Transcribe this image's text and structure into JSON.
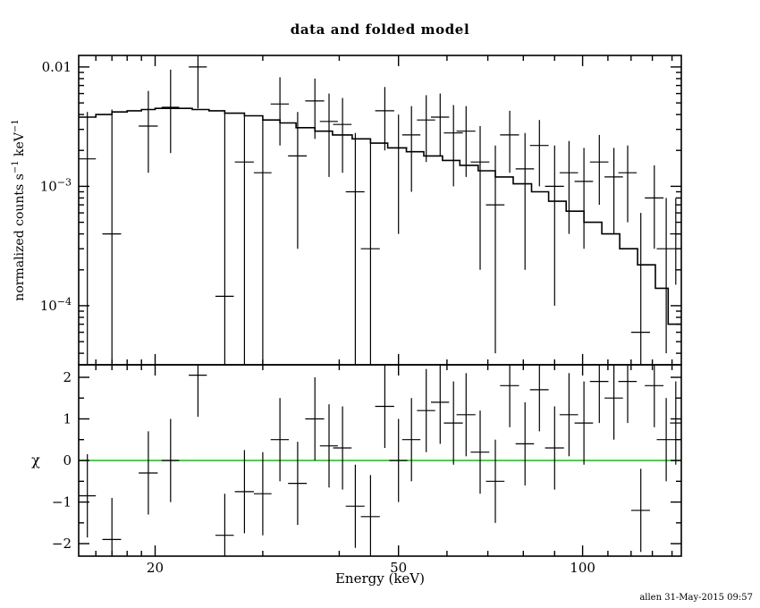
{
  "chart_title": "data and folded model",
  "footer": "allen 31-May-2015 09:57",
  "colors": {
    "foreground": "#000000",
    "background": "#ffffff",
    "zero_line": "#00c800"
  },
  "chart_data": [
    {
      "panel": "spectrum",
      "type": "line",
      "title": "data and folded model",
      "xlabel": "",
      "ylabel": "normalized counts s^-1 keV^-1",
      "xscale": "log",
      "yscale": "log",
      "xlim": [
        15,
        145
      ],
      "ylim": [
        3.2e-05,
        0.0125
      ],
      "xticks_major": [
        20,
        50,
        100
      ],
      "xticks_minor": [
        16,
        17,
        18,
        19,
        30,
        40,
        60,
        70,
        80,
        90,
        110,
        120,
        130,
        140
      ],
      "yticks_major": [
        {
          "value": 0.01,
          "label": "0.01"
        },
        {
          "value": 0.001,
          "label": "10^-3"
        },
        {
          "value": 0.0001,
          "label": "10^-4"
        }
      ],
      "yticks_minor": [
        4e-05,
        5e-05,
        6e-05,
        7e-05,
        8e-05,
        9e-05,
        0.0002,
        0.0003,
        0.0004,
        0.0005,
        0.0006,
        0.0007,
        0.0008,
        0.0009,
        0.002,
        0.003,
        0.004,
        0.005,
        0.006,
        0.007,
        0.008,
        0.009
      ],
      "model_step": {
        "edges": [
          15,
          16,
          17,
          18,
          19,
          20,
          21.5,
          23,
          24.5,
          26,
          28,
          30,
          32,
          34,
          36.5,
          39,
          42,
          45,
          48,
          51.5,
          55,
          59,
          63,
          67.5,
          72,
          77,
          82.5,
          88,
          94,
          100.5,
          107.5,
          115,
          123,
          131.5,
          138,
          145
        ],
        "values": [
          0.0038,
          0.004,
          0.0042,
          0.0043,
          0.0044,
          0.0045,
          0.0045,
          0.0044,
          0.0043,
          0.0041,
          0.0039,
          0.0036,
          0.0034,
          0.0031,
          0.0029,
          0.0027,
          0.0025,
          0.0023,
          0.0021,
          0.00195,
          0.0018,
          0.00165,
          0.0015,
          0.00135,
          0.0012,
          0.00105,
          0.0009,
          0.00075,
          0.00062,
          0.0005,
          0.0004,
          0.0003,
          0.00022,
          0.00014,
          7e-05
        ]
      },
      "points_columns": [
        "x",
        "xlo",
        "xhi",
        "y",
        "ylo",
        "yhi"
      ],
      "points": [
        [
          15.5,
          15.0,
          16.0,
          0.0017,
          3e-05,
          0.0042
        ],
        [
          17.0,
          16.4,
          17.6,
          0.0004,
          3e-05,
          0.0044
        ],
        [
          19.5,
          18.8,
          20.2,
          0.0032,
          0.0013,
          0.0063
        ],
        [
          21.2,
          20.5,
          21.9,
          0.0046,
          0.0019,
          0.0095
        ],
        [
          23.5,
          22.7,
          24.3,
          0.01,
          0.0045,
          0.013
        ],
        [
          26.0,
          25.1,
          26.9,
          0.00012,
          3e-05,
          0.0042
        ],
        [
          28.0,
          27.0,
          29.0,
          0.0016,
          3e-05,
          0.004
        ],
        [
          30.0,
          29.0,
          31.0,
          0.0013,
          3e-05,
          0.0036
        ],
        [
          32.0,
          30.9,
          33.1,
          0.0049,
          0.0022,
          0.0082
        ],
        [
          34.2,
          33.0,
          35.4,
          0.0018,
          0.0003,
          0.0042
        ],
        [
          36.5,
          35.2,
          37.8,
          0.0052,
          0.0025,
          0.008
        ],
        [
          38.5,
          37.2,
          39.8,
          0.0035,
          0.0012,
          0.006
        ],
        [
          40.5,
          39.1,
          41.9,
          0.0033,
          0.0013,
          0.0055
        ],
        [
          42.5,
          41.0,
          44.0,
          0.0009,
          3e-05,
          0.0028
        ],
        [
          45.0,
          43.4,
          46.6,
          0.0003,
          3e-05,
          0.0024
        ],
        [
          47.5,
          45.8,
          49.2,
          0.0043,
          0.002,
          0.0068
        ],
        [
          50.0,
          48.3,
          51.7,
          0.0021,
          0.0004,
          0.004
        ],
        [
          52.5,
          50.7,
          54.3,
          0.0027,
          0.0009,
          0.0047
        ],
        [
          55.5,
          53.6,
          57.4,
          0.0036,
          0.0016,
          0.0058
        ],
        [
          58.5,
          56.5,
          60.5,
          0.0038,
          0.0018,
          0.006
        ],
        [
          61.5,
          59.3,
          63.7,
          0.0028,
          0.001,
          0.0048
        ],
        [
          64.5,
          62.2,
          66.8,
          0.0029,
          0.0012,
          0.0047
        ],
        [
          68.0,
          65.6,
          70.4,
          0.0016,
          0.0002,
          0.0032
        ],
        [
          72.0,
          69.5,
          74.5,
          0.0007,
          4e-05,
          0.0022
        ],
        [
          76.0,
          73.3,
          78.7,
          0.0027,
          0.0013,
          0.0043
        ],
        [
          80.5,
          77.7,
          83.3,
          0.0014,
          0.0002,
          0.0028
        ],
        [
          85.0,
          82.0,
          88.0,
          0.0022,
          0.001,
          0.0036
        ],
        [
          90.0,
          86.8,
          93.2,
          0.001,
          0.0001,
          0.0022
        ],
        [
          95.0,
          91.7,
          98.3,
          0.0013,
          0.0004,
          0.0024
        ],
        [
          100.5,
          97.0,
          104.0,
          0.0011,
          0.0003,
          0.0021
        ],
        [
          106.5,
          102.8,
          110.2,
          0.0016,
          0.0007,
          0.0027
        ],
        [
          112.5,
          108.6,
          116.4,
          0.0012,
          0.0004,
          0.0021
        ],
        [
          118.5,
          114.4,
          122.6,
          0.0013,
          0.0005,
          0.0022
        ],
        [
          124.5,
          120.1,
          128.9,
          6e-05,
          3e-05,
          0.0006
        ],
        [
          131.0,
          126.4,
          135.6,
          0.0008,
          0.0003,
          0.0015
        ],
        [
          137.0,
          132.2,
          141.8,
          0.0003,
          4e-05,
          0.0008
        ],
        [
          142.0,
          139.0,
          145.0,
          0.0004,
          0.00015,
          0.0008
        ]
      ]
    },
    {
      "panel": "residuals",
      "type": "scatter",
      "xlabel": "Energy (keV)",
      "ylabel": "χ",
      "xscale": "log",
      "yscale": "linear",
      "xlim": [
        15,
        145
      ],
      "ylim": [
        -2.3,
        2.3
      ],
      "xticks_major": [
        20,
        50,
        100
      ],
      "xticks_minor": [
        16,
        17,
        18,
        19,
        30,
        40,
        60,
        70,
        80,
        90,
        110,
        120,
        130,
        140
      ],
      "yticks_major": [
        -2,
        -1,
        0,
        1,
        2
      ],
      "yticks_minor": [
        -1.5,
        -0.5,
        0.5,
        1.5
      ],
      "zero_line": {
        "y": 0,
        "color": "#00c800"
      },
      "points_columns": [
        "x",
        "xlo",
        "xhi",
        "chi",
        "err"
      ],
      "points": [
        [
          15.5,
          15.0,
          16.0,
          -0.85,
          1.0
        ],
        [
          17.0,
          16.4,
          17.6,
          -1.9,
          1.0
        ],
        [
          19.5,
          18.8,
          20.2,
          -0.3,
          1.0
        ],
        [
          21.2,
          20.5,
          21.9,
          0.0,
          1.0
        ],
        [
          23.5,
          22.7,
          24.3,
          2.05,
          1.0
        ],
        [
          26.0,
          25.1,
          26.9,
          -1.8,
          1.0
        ],
        [
          28.0,
          27.0,
          29.0,
          -0.75,
          1.0
        ],
        [
          30.0,
          29.0,
          31.0,
          -0.8,
          1.0
        ],
        [
          32.0,
          30.9,
          33.1,
          0.5,
          1.0
        ],
        [
          34.2,
          33.0,
          35.4,
          -0.55,
          1.0
        ],
        [
          36.5,
          35.2,
          37.8,
          1.0,
          1.0
        ],
        [
          38.5,
          37.2,
          39.8,
          0.35,
          1.0
        ],
        [
          40.5,
          39.1,
          41.9,
          0.3,
          1.0
        ],
        [
          42.5,
          41.0,
          44.0,
          -1.1,
          1.0
        ],
        [
          45.0,
          43.4,
          46.6,
          -1.35,
          1.0
        ],
        [
          47.5,
          45.8,
          49.2,
          1.3,
          1.0
        ],
        [
          50.0,
          48.3,
          51.7,
          0.0,
          1.0
        ],
        [
          52.5,
          50.7,
          54.3,
          0.5,
          1.0
        ],
        [
          55.5,
          53.6,
          57.4,
          1.2,
          1.0
        ],
        [
          58.5,
          56.5,
          60.5,
          1.4,
          1.0
        ],
        [
          61.5,
          59.3,
          63.7,
          0.9,
          1.0
        ],
        [
          64.5,
          62.2,
          66.8,
          1.1,
          1.0
        ],
        [
          68.0,
          65.6,
          70.4,
          0.2,
          1.0
        ],
        [
          72.0,
          69.5,
          74.5,
          -0.5,
          1.0
        ],
        [
          76.0,
          73.3,
          78.7,
          1.8,
          1.0
        ],
        [
          80.5,
          77.7,
          83.3,
          0.4,
          1.0
        ],
        [
          85.0,
          82.0,
          88.0,
          1.7,
          1.0
        ],
        [
          90.0,
          86.8,
          93.2,
          0.3,
          1.0
        ],
        [
          95.0,
          91.7,
          98.3,
          1.1,
          1.0
        ],
        [
          100.5,
          97.0,
          104.0,
          0.9,
          1.0
        ],
        [
          106.5,
          102.8,
          110.2,
          1.9,
          1.0
        ],
        [
          112.5,
          108.6,
          116.4,
          1.5,
          1.0
        ],
        [
          118.5,
          114.4,
          122.6,
          1.9,
          1.0
        ],
        [
          124.5,
          120.1,
          128.9,
          -1.2,
          1.0
        ],
        [
          131.0,
          126.4,
          135.6,
          1.8,
          1.0
        ],
        [
          137.0,
          132.2,
          141.8,
          0.5,
          1.0
        ],
        [
          142.0,
          139.0,
          145.0,
          0.9,
          1.0
        ]
      ]
    }
  ]
}
